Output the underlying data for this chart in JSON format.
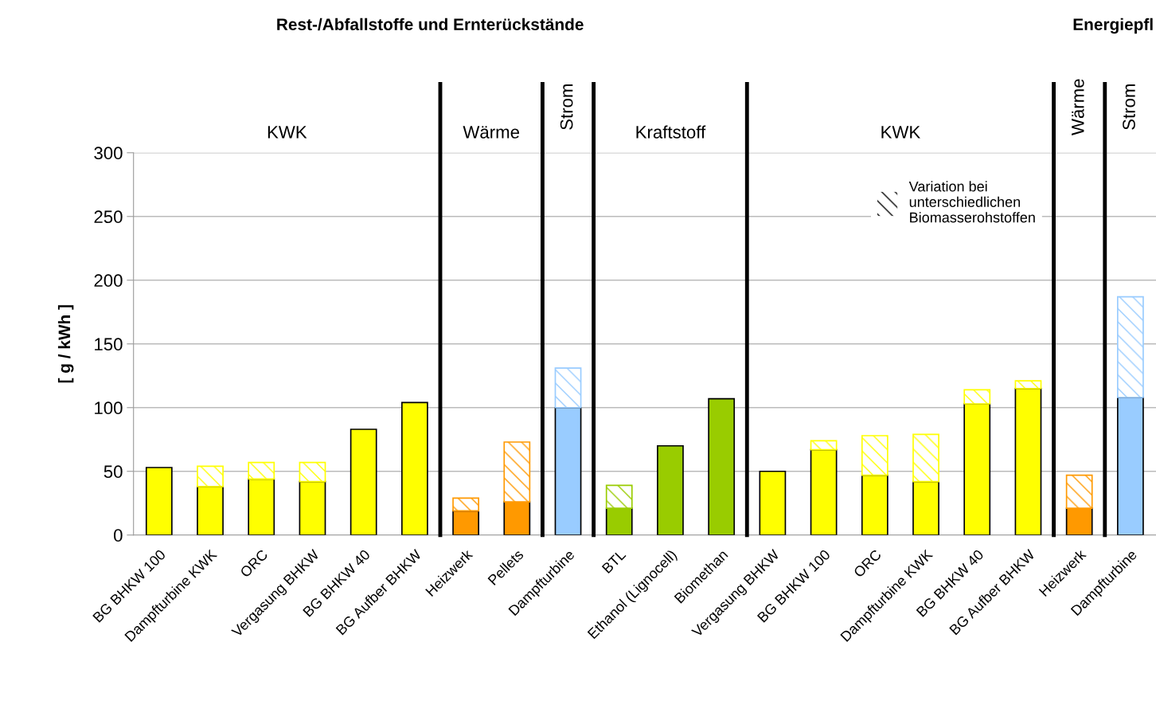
{
  "chart_data": {
    "type": "bar",
    "stacked": true,
    "title": "Rest-/Abfallstoffe und Ernterückstände",
    "ylabel": "[ g / kWh ]",
    "categories": [
      "BG BHKW 100",
      "Dampfturbine KWK",
      "ORC",
      "Vergasung BHKW",
      "BG BHKW 40",
      "BG Aufber BHKW",
      "Heizwerk",
      "Pellets",
      "Dampfturbine",
      "BTL",
      "Ethanol (Lignocell)",
      "Biomethan",
      "Vergasung BHKW",
      "BG BHKW 100",
      "ORC",
      "Dampfturbine KWK",
      "BG BHKW 40",
      "BG Aufber BHKW",
      "Heizwerk",
      "Dampfturbine"
    ],
    "series": [
      {
        "colors": [
          "#ffff00",
          "#ffff00",
          "#ffff00",
          "#ffff00",
          "#ffff00",
          "#ffff00",
          "#ff9900",
          "#ff9900",
          "#99ccff",
          "#99cc00",
          "#99cc00",
          "#99cc00",
          "#ffff00",
          "#ffff00",
          "#ffff00",
          "#ffff00",
          "#ffff00",
          "#ffff00",
          "#ff9900",
          "#99ccff"
        ],
        "values": [
          53,
          38,
          44,
          42,
          83,
          104,
          19,
          26,
          100,
          21,
          70,
          107,
          50,
          67,
          47,
          42,
          103,
          115,
          21,
          108
        ]
      },
      {
        "name": "Variation bei unterschiedlichen Biomasserohstoffen",
        "colors": [
          "#ffff00",
          "#ffff00",
          "#ffff00",
          "#ffff00",
          "#ffff00",
          "#ffff00",
          "#ff9900",
          "#ff9900",
          "#99ccff",
          "#99cc00",
          "#99cc00",
          "#99cc00",
          "#ffff00",
          "#ffff00",
          "#ffff00",
          "#ffff00",
          "#ffff00",
          "#ffff00",
          "#ff9900",
          "#99ccff"
        ],
        "values": [
          null,
          16,
          13,
          15,
          null,
          null,
          10,
          47,
          31,
          18,
          null,
          null,
          null,
          7,
          31,
          37,
          11,
          6,
          26,
          79
        ]
      }
    ],
    "ylim": [
      0,
      300
    ],
    "yticks": [
      0,
      50,
      100,
      150,
      200,
      250,
      300
    ],
    "grid": "y",
    "legend": "top right",
    "annotations": [
      "KWK",
      "Wärme",
      "Strom",
      "Kraftstoff",
      "KWK",
      "Wärme",
      "Strom",
      "Energiepfl"
    ]
  }
}
